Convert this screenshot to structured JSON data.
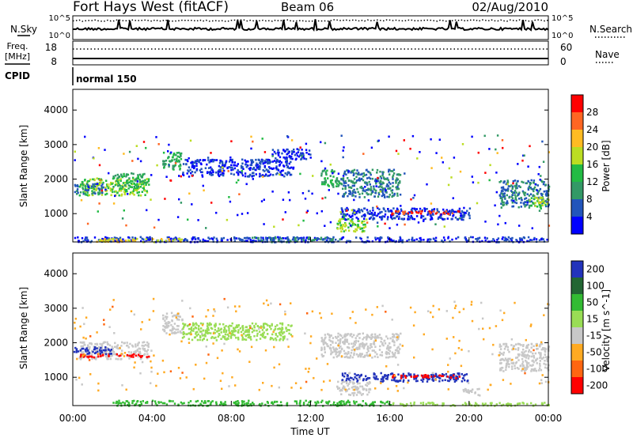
{
  "header": {
    "station": "Fort Hays West (fitACF)",
    "beam": "Beam 06",
    "date": "02/Aug/2010"
  },
  "top_panels": {
    "nsky": {
      "label": "N.Sky",
      "tick_top": "10^5",
      "tick_bottom": "10^0"
    },
    "nsearch": {
      "label": "N.Search",
      "tick_top": "10^5",
      "tick_bottom": "10^0"
    },
    "freq": {
      "label_line1": "Freq.",
      "label_line2": "[MHz]",
      "tick_top": "18",
      "tick_bottom": "8"
    },
    "nave": {
      "label": "Nave",
      "tick_top": "60",
      "tick_bottom": "0"
    },
    "cpid": {
      "label": "CPID",
      "value": "normal 150"
    }
  },
  "chart_data": [
    {
      "type": "heatmap",
      "name": "power",
      "ylabel": "Slant Range [km]",
      "ylim": [
        180,
        4600
      ],
      "yticks": [
        1000,
        2000,
        3000,
        4000
      ],
      "xlim": [
        0,
        24
      ],
      "colorbar": {
        "label": "Power [dB]",
        "levels": [
          4,
          8,
          12,
          16,
          20,
          24,
          28
        ],
        "colors": [
          "#0000ff",
          "#2255bb",
          "#339966",
          "#22bb44",
          "#bbdd22",
          "#ffbb22",
          "#ff6622",
          "#ff0000"
        ]
      },
      "regions": [
        {
          "t0": 0.3,
          "t1": 3.8,
          "r0": 1550,
          "r1": 2050,
          "level": 16
        },
        {
          "t0": 2.0,
          "t1": 3.8,
          "r0": 1800,
          "r1": 2200,
          "level": 12
        },
        {
          "t0": 0.0,
          "t1": 1.5,
          "r0": 1600,
          "r1": 1900,
          "level": 8
        },
        {
          "t0": 4.5,
          "t1": 5.5,
          "r0": 2300,
          "r1": 2800,
          "level": 12
        },
        {
          "t0": 5.5,
          "t1": 11.0,
          "r0": 2100,
          "r1": 2600,
          "level": 4
        },
        {
          "t0": 10.0,
          "t1": 12.0,
          "r0": 2600,
          "r1": 2900,
          "level": 4
        },
        {
          "t0": 12.5,
          "t1": 13.5,
          "r0": 1800,
          "r1": 2300,
          "level": 12
        },
        {
          "t0": 13.5,
          "t1": 16.5,
          "r0": 1500,
          "r1": 2300,
          "level": 8
        },
        {
          "t0": 13.5,
          "t1": 20.0,
          "r0": 850,
          "r1": 1200,
          "level": 4
        },
        {
          "t0": 16.0,
          "t1": 19.5,
          "r0": 1000,
          "r1": 1100,
          "level": 28
        },
        {
          "t0": 13.3,
          "t1": 14.8,
          "r0": 500,
          "r1": 900,
          "level": 16
        },
        {
          "t0": 21.5,
          "t1": 24.0,
          "r0": 1200,
          "r1": 2000,
          "level": 8
        },
        {
          "t0": 23.0,
          "t1": 24.0,
          "r0": 1200,
          "r1": 1500,
          "level": 16
        },
        {
          "t0": 0.0,
          "t1": 24.0,
          "r0": 200,
          "r1": 350,
          "level": 4
        },
        {
          "t0": 1.0,
          "t1": 5.5,
          "r0": 200,
          "r1": 300,
          "level": 20
        },
        {
          "t0": 9.0,
          "t1": 14.0,
          "r0": 200,
          "r1": 350,
          "level": 8
        },
        {
          "t0": 0.0,
          "t1": 24.0,
          "r0": 600,
          "r1": 3300,
          "level": 4
        }
      ]
    },
    {
      "type": "heatmap",
      "name": "velocity",
      "ylabel": "Slant Range [km]",
      "ylim": [
        180,
        4600
      ],
      "yticks": [
        1000,
        2000,
        3000,
        4000
      ],
      "xlim": [
        0,
        24
      ],
      "xlabel": "Time UT",
      "xticks": [
        "00:00",
        "04:00",
        "08:00",
        "12:00",
        "16:00",
        "20:00",
        "00:00"
      ],
      "colorbar": {
        "label": "Velocity [m s^-1]",
        "labels": [
          "200",
          "100",
          "50",
          "15",
          "-15",
          "-50",
          "-100",
          "-200"
        ],
        "colors": [
          "#2233bb",
          "#226633",
          "#33bb33",
          "#99dd55",
          "#c8c8c8",
          "#ffaa22",
          "#ff6611",
          "#ff0000"
        ]
      },
      "regions": [
        {
          "t0": 0.3,
          "t1": 3.8,
          "r0": 1550,
          "r1": 2050,
          "level": -15
        },
        {
          "t0": 0.3,
          "t1": 3.8,
          "r0": 1600,
          "r1": 1700,
          "level": -200
        },
        {
          "t0": 0.0,
          "t1": 2.0,
          "r0": 1700,
          "r1": 1900,
          "level": 200
        },
        {
          "t0": 4.5,
          "t1": 5.5,
          "r0": 2300,
          "r1": 2900,
          "level": -15
        },
        {
          "t0": 5.5,
          "t1": 11.0,
          "r0": 2100,
          "r1": 2600,
          "level": 15
        },
        {
          "t0": 12.5,
          "t1": 16.5,
          "r0": 1600,
          "r1": 2300,
          "level": -15
        },
        {
          "t0": 13.5,
          "t1": 20.0,
          "r0": 900,
          "r1": 1150,
          "level": 200
        },
        {
          "t0": 16.0,
          "t1": 19.5,
          "r0": 1000,
          "r1": 1100,
          "level": -200
        },
        {
          "t0": 13.3,
          "t1": 15.0,
          "r0": 500,
          "r1": 900,
          "level": -15
        },
        {
          "t0": 19.5,
          "t1": 20.5,
          "r0": 500,
          "r1": 700,
          "level": -15
        },
        {
          "t0": 21.5,
          "t1": 24.0,
          "r0": 1200,
          "r1": 2000,
          "level": -15
        },
        {
          "t0": 2.0,
          "t1": 16.0,
          "r0": 200,
          "r1": 350,
          "level": 50
        },
        {
          "t0": 16.0,
          "t1": 24.0,
          "r0": 200,
          "r1": 300,
          "level": 15
        },
        {
          "t0": 0.0,
          "t1": 24.0,
          "r0": 600,
          "r1": 3300,
          "level": -50
        }
      ]
    }
  ]
}
